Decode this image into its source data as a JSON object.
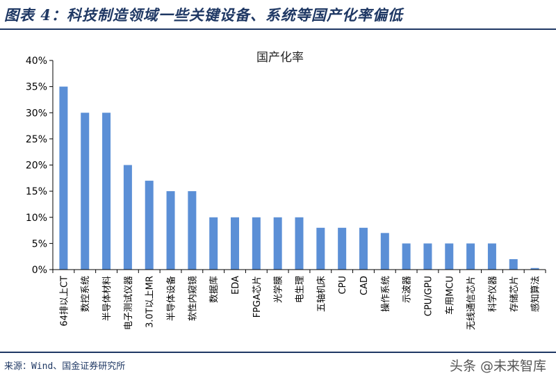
{
  "header": {
    "title": "图表 4：科技制造领域一些关键设备、系统等国产化率偏低"
  },
  "footer": {
    "source": "来源：Wind、国金证券研究所"
  },
  "watermark": {
    "text": "头条 @未来智库"
  },
  "colors": {
    "bar": "#5b8fd6",
    "accent": "#1f3864"
  },
  "chart_data": {
    "type": "bar",
    "title": "国产化率",
    "xlabel": "",
    "ylabel": "",
    "ylim": [
      0,
      40
    ],
    "yticks": [
      "0%",
      "5%",
      "10%",
      "15%",
      "20%",
      "25%",
      "30%",
      "35%",
      "40%"
    ],
    "grid": false,
    "categories": [
      "64排以上CT",
      "数控系统",
      "半导体材料",
      "电子测试仪器",
      "3.0T以上MR",
      "半导体设备",
      "软性内窥镜",
      "数据库",
      "EDA",
      "FPGA芯片",
      "光学膜",
      "电生理",
      "五轴机床",
      "CPU",
      "CAD",
      "操作系统",
      "示波器",
      "CPU/GPU",
      "车用MCU",
      "无线通信芯片",
      "科学仪器",
      "存储芯片",
      "感知算法"
    ],
    "values": [
      35,
      30,
      30,
      20,
      17,
      15,
      15,
      10,
      10,
      10,
      10,
      10,
      8,
      8,
      8,
      7,
      5,
      5,
      5,
      5,
      5,
      2,
      0.3
    ]
  }
}
